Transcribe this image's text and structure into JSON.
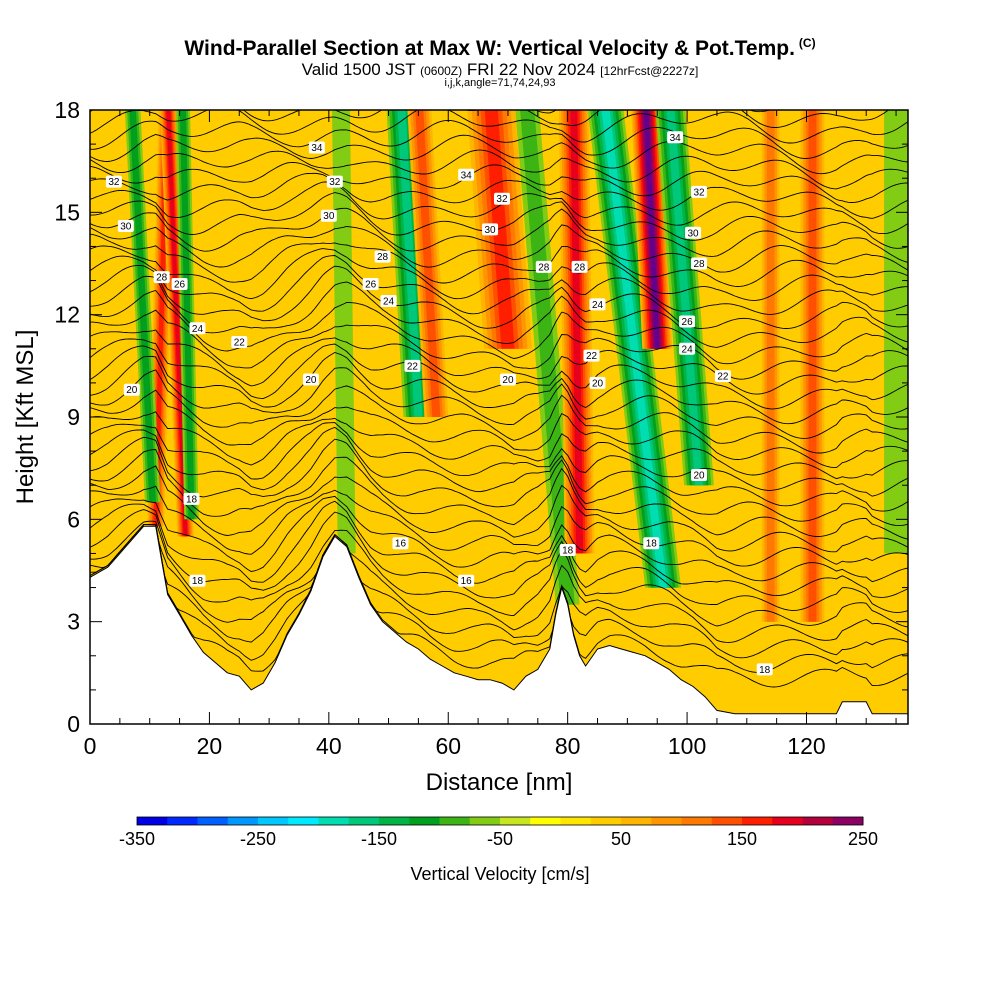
{
  "header": {
    "title": "Wind-Parallel Section at Max W: Vertical Velocity & Pot.Temp.",
    "copyright": "(C)",
    "valid_prefix": "Valid 1500 JST",
    "valid_utc": "(0600Z)",
    "valid_date": "FRI 22 Nov 2024",
    "forecast_info": "[12hrFcst@2227z]",
    "indices": "i,j,k,angle=71,74,24,93"
  },
  "chart_data": {
    "type": "heatmap",
    "title": "Wind-Parallel Section at Max W: Vertical Velocity & Pot.Temp.",
    "xlabel": "Distance [nm]",
    "ylabel": "Height [Kft MSL]",
    "xlim": [
      0,
      137
    ],
    "ylim": [
      0,
      18
    ],
    "xticks": [
      "0",
      "20",
      "40",
      "60",
      "80",
      "100",
      "120"
    ],
    "yticks": [
      "0",
      "3",
      "6",
      "9",
      "12",
      "15",
      "18"
    ],
    "xtick_values": [
      0,
      20,
      40,
      60,
      80,
      100,
      120
    ],
    "ytick_values": [
      0,
      3,
      6,
      9,
      12,
      15,
      18
    ],
    "colorbar": {
      "title": "Vertical Velocity [cm/s]",
      "min": -350,
      "max": 250,
      "step": 25,
      "tick_labels": [
        "-350",
        "-250",
        "-150",
        "-50",
        "50",
        "150",
        "250"
      ],
      "tick_values": [
        -350,
        -250,
        -150,
        -50,
        50,
        150,
        250
      ],
      "colors": [
        "#0000e6",
        "#0028ff",
        "#0060ff",
        "#0098ff",
        "#00c8ff",
        "#00eaff",
        "#00ddb0",
        "#00c87a",
        "#00b446",
        "#00a01e",
        "#3cb414",
        "#82cc14",
        "#c8e61e",
        "#ffff00",
        "#ffe600",
        "#ffcc00",
        "#ffb400",
        "#ff9600",
        "#ff7800",
        "#ff5000",
        "#ff1e00",
        "#e6001e",
        "#b4003c",
        "#8c0064",
        "#64008c",
        "#46009b"
      ]
    },
    "background_w": 25,
    "terrain": [
      [
        0,
        4.3
      ],
      [
        3,
        4.6
      ],
      [
        5,
        5.0
      ],
      [
        7,
        5.4
      ],
      [
        9,
        5.8
      ],
      [
        11,
        5.8
      ],
      [
        12,
        4.8
      ],
      [
        13,
        3.8
      ],
      [
        15,
        3.2
      ],
      [
        17,
        2.6
      ],
      [
        19,
        2.1
      ],
      [
        21,
        1.8
      ],
      [
        23,
        1.5
      ],
      [
        25,
        1.4
      ],
      [
        27,
        1.0
      ],
      [
        29,
        1.2
      ],
      [
        31,
        1.8
      ],
      [
        33,
        2.6
      ],
      [
        35,
        3.2
      ],
      [
        37,
        3.9
      ],
      [
        39,
        4.9
      ],
      [
        41,
        5.5
      ],
      [
        43,
        5.2
      ],
      [
        45,
        4.3
      ],
      [
        47,
        3.5
      ],
      [
        49,
        3.0
      ],
      [
        51,
        2.7
      ],
      [
        53,
        2.4
      ],
      [
        55,
        2.2
      ],
      [
        57,
        1.9
      ],
      [
        59,
        1.7
      ],
      [
        61,
        1.5
      ],
      [
        63,
        1.4
      ],
      [
        65,
        1.3
      ],
      [
        67,
        1.3
      ],
      [
        69,
        1.2
      ],
      [
        71,
        1.0
      ],
      [
        73,
        1.4
      ],
      [
        75,
        1.6
      ],
      [
        77,
        2.2
      ],
      [
        78,
        3.2
      ],
      [
        79,
        4.0
      ],
      [
        80,
        3.5
      ],
      [
        81,
        2.6
      ],
      [
        82,
        2.0
      ],
      [
        83,
        1.7
      ],
      [
        85,
        2.2
      ],
      [
        87,
        2.3
      ],
      [
        89,
        2.2
      ],
      [
        91,
        2.1
      ],
      [
        93,
        2.0
      ],
      [
        95,
        1.8
      ],
      [
        97,
        1.6
      ],
      [
        99,
        1.3
      ],
      [
        101,
        1.1
      ],
      [
        103,
        0.8
      ],
      [
        105,
        0.4
      ],
      [
        108,
        0.3
      ],
      [
        112,
        0.3
      ],
      [
        117,
        0.3
      ],
      [
        121,
        0.3
      ],
      [
        125,
        0.3
      ],
      [
        126,
        0.65
      ],
      [
        130,
        0.65
      ],
      [
        131,
        0.3
      ],
      [
        137,
        0.3
      ]
    ],
    "w_bands": [
      {
        "type": "updraft",
        "w": 150,
        "x_bottom": 11,
        "y_bottom": 5.8,
        "x_top": 13,
        "width": 1.4
      },
      {
        "type": "updraft",
        "w": 175,
        "x_bottom": 16,
        "y_bottom": 5.5,
        "x_top": 13,
        "width": 1.4
      },
      {
        "type": "downdraft",
        "w": -100,
        "x_bottom": 10.5,
        "y_bottom": 6.5,
        "x_top": 7,
        "width": 1.3
      },
      {
        "type": "downdraft",
        "w": -100,
        "x_bottom": 17,
        "y_bottom": 6,
        "x_top": 15.5,
        "width": 1.2
      },
      {
        "type": "downdraft",
        "w": -50,
        "x_bottom": 43,
        "y_bottom": 5,
        "x_top": 42,
        "width": 1.5
      },
      {
        "type": "downdraft",
        "w": -150,
        "x_bottom": 55,
        "y_bottom": 9,
        "x_top": 52,
        "width": 2.5
      },
      {
        "type": "updraft",
        "w": 125,
        "x_bottom": 58,
        "y_bottom": 9,
        "x_top": 55,
        "width": 2
      },
      {
        "type": "updraft",
        "w": 150,
        "x_bottom": 70,
        "y_bottom": 11,
        "x_top": 67,
        "width": 4
      },
      {
        "type": "downdraft",
        "w": -75,
        "x_bottom": 80,
        "y_bottom": 3.5,
        "x_top": 73,
        "width": 2
      },
      {
        "type": "updraft",
        "w": 175,
        "x_bottom": 82,
        "y_bottom": 5,
        "x_top": 81,
        "width": 2.5
      },
      {
        "type": "downdraft",
        "w": -175,
        "x_bottom": 96,
        "y_bottom": 4,
        "x_top": 86,
        "width": 3
      },
      {
        "type": "updraft",
        "w": 250,
        "x_bottom": 95,
        "y_bottom": 11,
        "x_top": 93,
        "width": 2.5
      },
      {
        "type": "downdraft",
        "w": -150,
        "x_bottom": 102,
        "y_bottom": 7,
        "x_top": 97,
        "width": 2.5
      },
      {
        "type": "updraft",
        "w": 100,
        "x_bottom": 114,
        "y_bottom": 3,
        "x_top": 114,
        "width": 1.5
      },
      {
        "type": "updraft",
        "w": 125,
        "x_bottom": 121,
        "y_bottom": 3,
        "x_top": 121,
        "width": 2
      },
      {
        "type": "downdraft",
        "w": -50,
        "x_bottom": 135,
        "y_bottom": 5,
        "x_top": 135,
        "width": 2
      }
    ],
    "isentropes": [
      {
        "theta": 16,
        "base": 3.3,
        "labels": [
          [
            52,
            5.3
          ],
          [
            63,
            4.2
          ]
        ]
      },
      {
        "theta": 18,
        "base": 4.2,
        "labels": [
          [
            17,
            6.6
          ],
          [
            18,
            4.2
          ],
          [
            80,
            5.1
          ],
          [
            94,
            5.3
          ],
          [
            113,
            1.6
          ]
        ]
      },
      {
        "theta": 20,
        "base": 9.6,
        "labels": [
          [
            7,
            9.8
          ],
          [
            37,
            10.1
          ],
          [
            70,
            10.1
          ],
          [
            85,
            10.0
          ],
          [
            102,
            7.3
          ]
        ]
      },
      {
        "theta": 22,
        "base": 10.6,
        "labels": [
          [
            25,
            11.2
          ],
          [
            54,
            10.5
          ],
          [
            84,
            10.8
          ],
          [
            106,
            10.2
          ]
        ]
      },
      {
        "theta": 24,
        "base": 11.8,
        "labels": [
          [
            18,
            11.6
          ],
          [
            50,
            12.4
          ],
          [
            85,
            12.3
          ],
          [
            100,
            11.0
          ]
        ]
      },
      {
        "theta": 26,
        "base": 12.5,
        "labels": [
          [
            15,
            12.9
          ],
          [
            47,
            12.9
          ],
          [
            100,
            11.8
          ]
        ]
      },
      {
        "theta": 28,
        "base": 13.3,
        "labels": [
          [
            12,
            13.1
          ],
          [
            49,
            13.7
          ],
          [
            76,
            13.4
          ],
          [
            82,
            13.4
          ],
          [
            102,
            13.5
          ]
        ]
      },
      {
        "theta": 30,
        "base": 14.9,
        "labels": [
          [
            6,
            14.6
          ],
          [
            40,
            14.9
          ],
          [
            67,
            14.5
          ],
          [
            101,
            14.4
          ]
        ]
      },
      {
        "theta": 32,
        "base": 15.7,
        "labels": [
          [
            4,
            15.9
          ],
          [
            41,
            15.9
          ],
          [
            69,
            15.4
          ],
          [
            102,
            15.6
          ]
        ]
      },
      {
        "theta": 34,
        "base": 16.9,
        "labels": [
          [
            38,
            16.9
          ],
          [
            63,
            16.1
          ],
          [
            98,
            17.2
          ]
        ]
      }
    ]
  }
}
